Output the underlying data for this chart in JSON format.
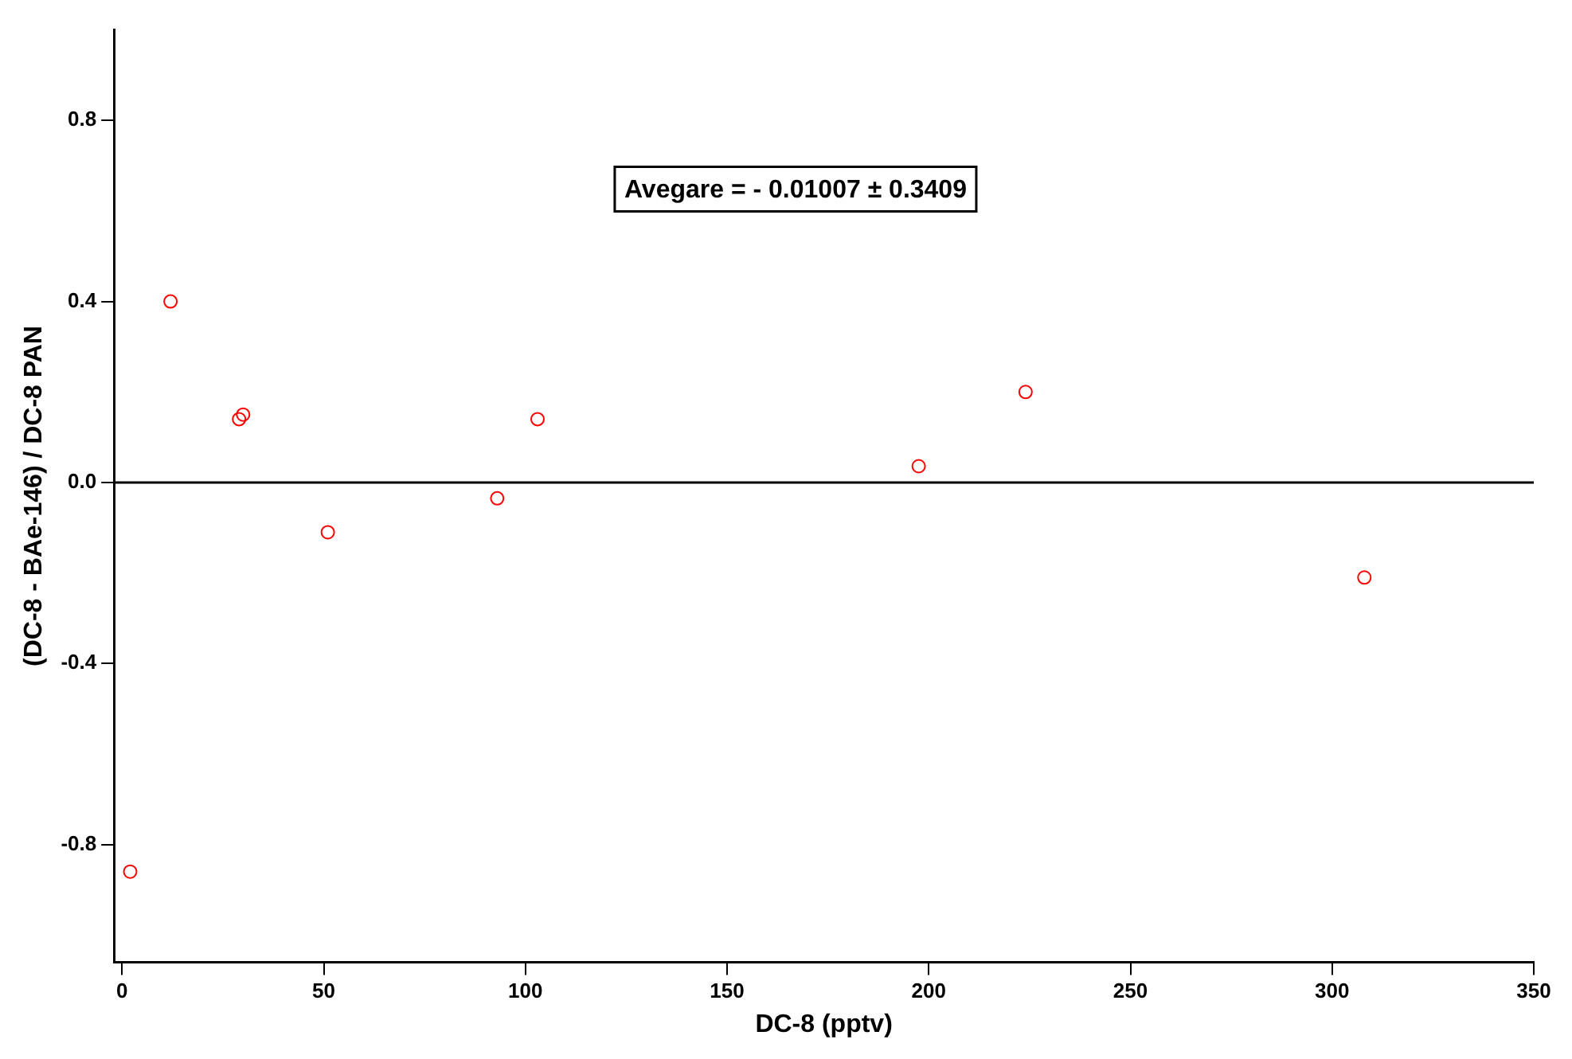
{
  "chart_data": {
    "type": "scatter",
    "xlabel": "DC-8 (pptv)",
    "ylabel": "(DC-8 - BAe-146) / DC-8 PAN",
    "x": [
      2,
      12,
      29,
      30,
      51,
      93,
      103,
      197.5,
      224,
      308
    ],
    "series": [
      {
        "color": "#ff0000",
        "values": [
          -0.86,
          0.4,
          0.14,
          0.15,
          -0.11,
          -0.035,
          0.14,
          0.036,
          0.2,
          -0.21
        ]
      }
    ],
    "xlim": [
      -2,
      350
    ],
    "xticks": [
      0,
      50,
      100,
      150,
      200,
      250,
      300,
      350
    ],
    "ylim": [
      -1.06,
      1.0
    ],
    "yticks": [
      {
        "value": -0.8,
        "label": "-0.8"
      },
      {
        "value": -0.4,
        "label": "-0.4"
      },
      {
        "value": 0,
        "label": "0.0"
      },
      {
        "value": 0.4,
        "label": "0.4"
      },
      {
        "value": 0.8,
        "label": "0.8"
      }
    ],
    "ref_lines": [
      {
        "axis": "y",
        "value": 0,
        "color": "#000000"
      }
    ],
    "annotations": [
      "Avegare = - 0.01007 ± 0.3409"
    ],
    "grid": false,
    "legend": false,
    "marker": "circle"
  }
}
